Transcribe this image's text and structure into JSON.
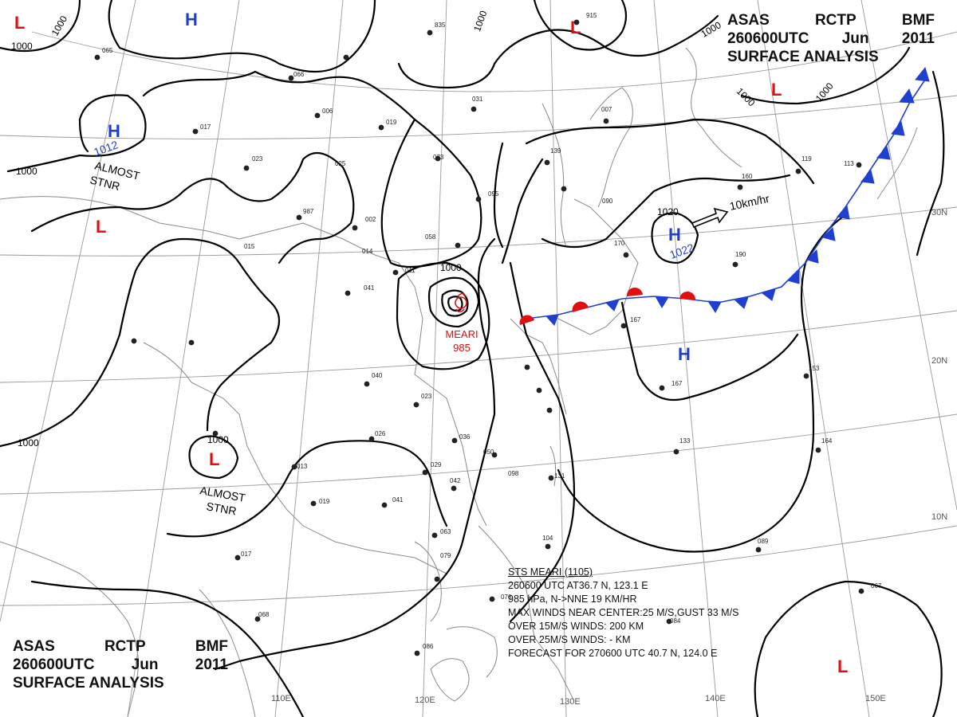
{
  "header": {
    "line1": [
      "ASAS",
      "RCTP",
      "BMF"
    ],
    "line2": [
      "260600UTC",
      "Jun",
      "2011"
    ],
    "line3": "SURFACE ANALYSIS"
  },
  "footer": {
    "line1": [
      "ASAS",
      "RCTP",
      "BMF"
    ],
    "line2": [
      "260600UTC",
      "Jun",
      "2011"
    ],
    "line3": "SURFACE ANALYSIS"
  },
  "storm_info": {
    "heading": "STS MEARI (1105)",
    "lines": [
      "260600 UTC  AT36.7 N, 123.1 E",
      "985 hPa, N->NNE  19 KM/HR",
      "MAX WINDS NEAR CENTER:25 M/S,GUST 33 M/S",
      "OVER 15M/S WINDS: 200 KM",
      "OVER 25M/S WINDS: - KM",
      "FORECAST FOR 270600 UTC 40.7 N, 124.0 E"
    ]
  },
  "storm_label": {
    "name": "MEARI",
    "pressure": "985"
  },
  "lon_labels": [
    "110E",
    "120E",
    "130E",
    "140E",
    "150E"
  ],
  "lat_labels": [
    "30N",
    "20N",
    "10N"
  ],
  "pressure_systems": [
    {
      "type": "H",
      "value": "1012"
    },
    {
      "type": "H",
      "value": "1022"
    },
    {
      "type": "H",
      "value": ""
    },
    {
      "type": "H",
      "value": ""
    },
    {
      "type": "L",
      "value": ""
    },
    {
      "type": "L",
      "value": ""
    },
    {
      "type": "L",
      "value": ""
    },
    {
      "type": "L",
      "value": ""
    },
    {
      "type": "L",
      "value": ""
    },
    {
      "type": "L",
      "value": ""
    }
  ],
  "isobar_labels": [
    "1000",
    "1000",
    "1000",
    "1000",
    "1000",
    "1000",
    "1000",
    "1000",
    "1000",
    "1000",
    "1020"
  ],
  "annotations": {
    "almost_stnr": "ALMOST STNR",
    "almost_stnr_north": "ALMOST STNR",
    "movement": "10km/hr"
  },
  "station_labels": [
    "835",
    "915",
    "065",
    "066",
    "006",
    "017",
    "019",
    "023",
    "025",
    "987",
    "002",
    "014",
    "015",
    "058",
    "011",
    "041",
    "095",
    "073",
    "031",
    "139",
    "007",
    "090",
    "160",
    "119",
    "113",
    "190",
    "170",
    "167",
    "167",
    "153",
    "133",
    "164",
    "131",
    "098",
    "040",
    "023",
    "026",
    "036",
    "050",
    "029",
    "042",
    "041",
    "019",
    "013",
    "017",
    "068",
    "063",
    "079",
    "076",
    "086",
    "084",
    "089",
    "067",
    "104"
  ],
  "colors": {
    "high": "#1f3fd0",
    "low": "#e01010",
    "isobar": "#000000",
    "grid": "#9a9a9a",
    "coast": "#8a8a8a",
    "warm_front": "#e01010",
    "cold_front": "#1f3fd0"
  }
}
